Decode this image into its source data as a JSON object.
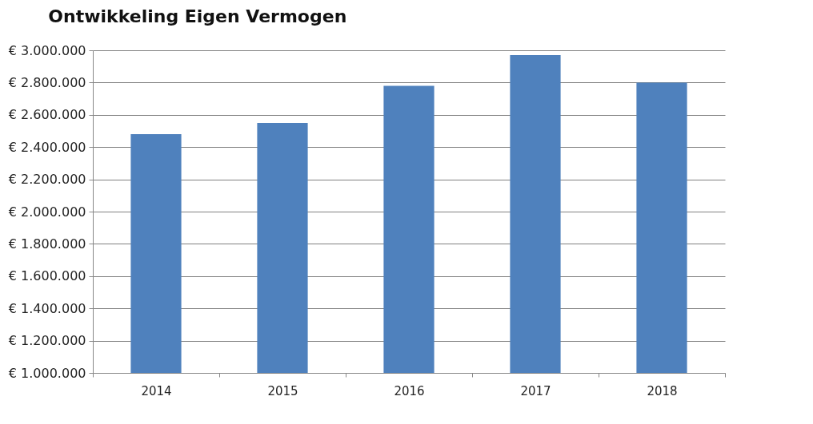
{
  "chart_data": {
    "type": "bar",
    "title": "Ontwikkeling Eigen Vermogen",
    "categories": [
      "2014",
      "2015",
      "2016",
      "2017",
      "2018"
    ],
    "values": [
      2480000,
      2550000,
      2780000,
      2970000,
      2800000
    ],
    "color": "#4f81bd",
    "ylim": [
      1000000,
      3000000
    ],
    "yticks": [
      {
        "value": 1000000,
        "label": "€ 1.000.000"
      },
      {
        "value": 1200000,
        "label": "€ 1.200.000"
      },
      {
        "value": 1400000,
        "label": "€ 1.400.000"
      },
      {
        "value": 1600000,
        "label": "€ 1.600.000"
      },
      {
        "value": 1800000,
        "label": "€ 1.800.000"
      },
      {
        "value": 2000000,
        "label": "€ 2.000.000"
      },
      {
        "value": 2200000,
        "label": "€ 2.200.000"
      },
      {
        "value": 2400000,
        "label": "€ 2.400.000"
      },
      {
        "value": 2600000,
        "label": "€ 2.600.000"
      },
      {
        "value": 2800000,
        "label": "€ 2.800.000"
      },
      {
        "value": 3000000,
        "label": "€ 3.000.000"
      }
    ],
    "grid": "y"
  }
}
